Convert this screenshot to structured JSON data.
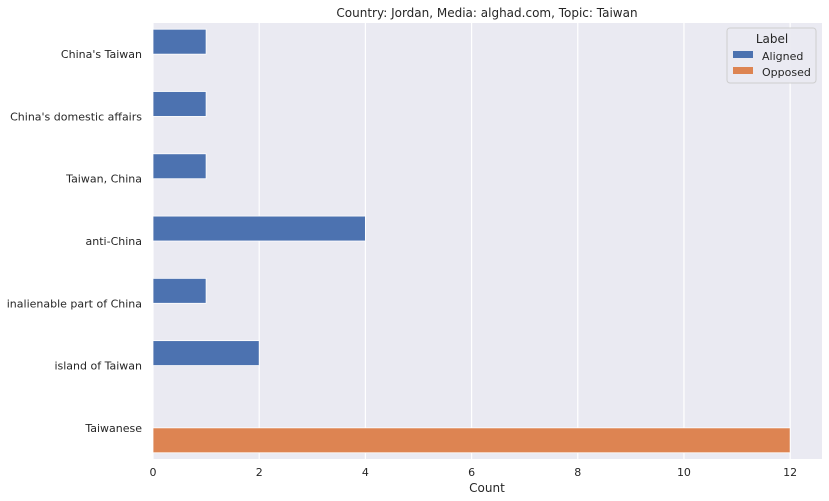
{
  "chart_data": {
    "type": "bar",
    "orientation": "horizontal",
    "title": "Country: Jordan, Media: alghad.com, Topic: Taiwan",
    "xlabel": "Count",
    "ylabel": "",
    "xlim": [
      0,
      12.6
    ],
    "x_ticks": [
      "0",
      "2",
      "4",
      "6",
      "8",
      "10",
      "12"
    ],
    "categories": [
      "China's Taiwan",
      "China's domestic affairs",
      "Taiwan, China",
      "anti-China",
      "inalienable part of China",
      "island of Taiwan",
      "Taiwanese"
    ],
    "series": [
      {
        "name": "Aligned",
        "color": "#4c72b0",
        "values": [
          1,
          1,
          1,
          4,
          1,
          2,
          0
        ]
      },
      {
        "name": "Opposed",
        "color": "#dd8452",
        "values": [
          0,
          0,
          0,
          0,
          0,
          0,
          12
        ]
      }
    ],
    "legend": {
      "title": "Label",
      "placement": "top-right"
    },
    "grid": true,
    "background": "#eaeaf2"
  }
}
